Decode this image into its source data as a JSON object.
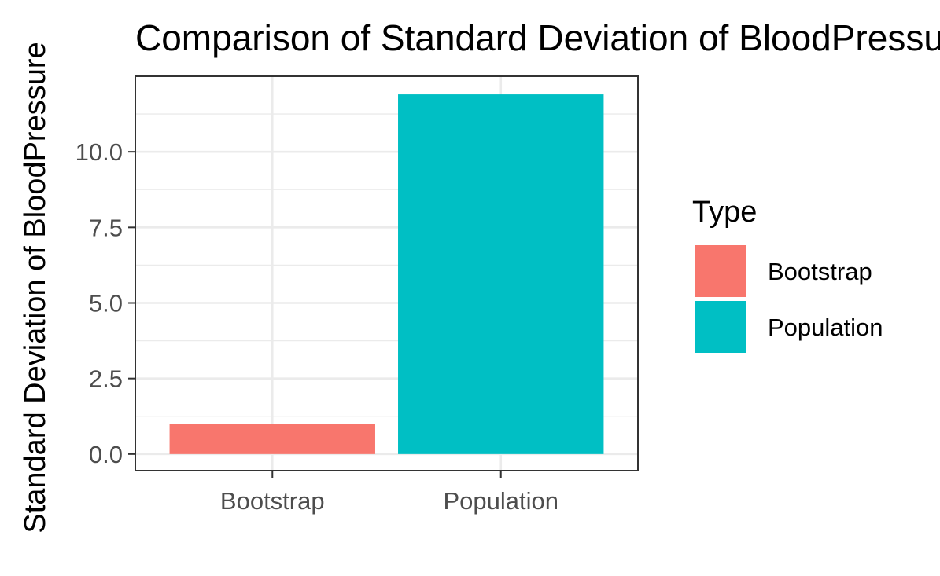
{
  "chart_data": {
    "type": "bar",
    "title": "Comparison of Standard Deviation of BloodPressure",
    "xlabel": "",
    "ylabel": "Standard Deviation of BloodPressure",
    "categories": [
      "Bootstrap",
      "Population"
    ],
    "values": [
      1.0,
      11.9
    ],
    "colors": [
      "#F8766D",
      "#00BFC4"
    ],
    "ylim": [
      -0.55,
      12.5
    ],
    "yticks": [
      0.0,
      2.5,
      5.0,
      7.5,
      10.0
    ],
    "ytick_labels": [
      "0.0",
      "2.5",
      "5.0",
      "7.5",
      "10.0"
    ],
    "grid": true,
    "legend": {
      "title": "Type",
      "entries": [
        "Bootstrap",
        "Population"
      ],
      "position": "right"
    }
  }
}
